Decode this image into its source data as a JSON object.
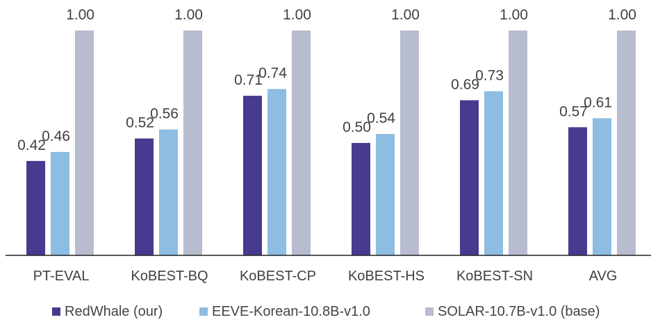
{
  "chart_data": {
    "type": "bar",
    "categories": [
      "PT-EVAL",
      "KoBEST-BQ",
      "KoBEST-CP",
      "KoBEST-HS",
      "KoBEST-SN",
      "AVG"
    ],
    "series": [
      {
        "name": "RedWhale (our)",
        "color": "#473b8f",
        "values": [
          0.42,
          0.52,
          0.71,
          0.5,
          0.69,
          0.57
        ],
        "labels": [
          "0.42",
          "0.52",
          "0.71",
          "0.50",
          "0.69",
          "0.57"
        ]
      },
      {
        "name": "EEVE-Korean-10.8B-v1.0",
        "color": "#8dbde2",
        "values": [
          0.46,
          0.56,
          0.74,
          0.54,
          0.73,
          0.61
        ],
        "labels": [
          "0.46",
          "0.56",
          "0.74",
          "0.54",
          "0.73",
          "0.61"
        ]
      },
      {
        "name": "SOLAR-10.7B-v1.0 (base)",
        "color": "#b7bccf",
        "values": [
          1.0,
          1.0,
          1.0,
          1.0,
          1.0,
          1.0
        ],
        "labels": [
          "1.00",
          "1.00",
          "1.00",
          "1.00",
          "1.00",
          "1.00"
        ]
      }
    ],
    "ylim": [
      0,
      1
    ],
    "legend_position": "bottom",
    "grid": false
  }
}
